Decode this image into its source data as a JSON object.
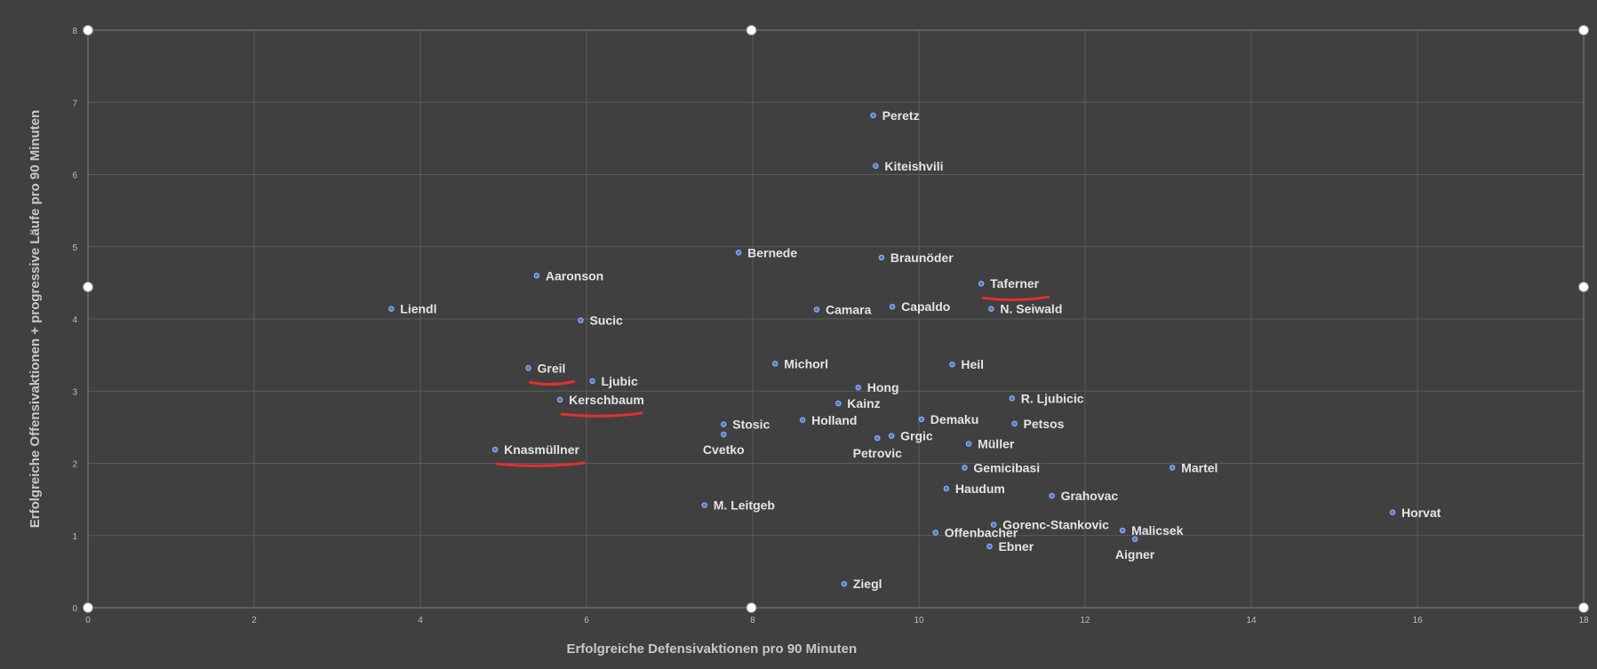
{
  "chart_data": {
    "type": "scatter",
    "title": "",
    "xlabel": "Erfolgreiche Defensivaktionen pro 90 Minuten",
    "ylabel": "Erfolgreiche Offensivaktionen + progressive Läufe pro 90 Minuten",
    "xlim": [
      0,
      18
    ],
    "ylim": [
      0,
      8
    ],
    "x_ticks": [
      0,
      2,
      4,
      6,
      8,
      10,
      12,
      14,
      16,
      18
    ],
    "y_ticks": [
      0,
      1,
      2,
      3,
      4,
      5,
      6,
      7,
      8
    ],
    "grid": true,
    "point_color": "#4a78d6",
    "label_color": "#e4e4e4",
    "highlight_color": "#e23030",
    "highlighted": [
      "Taferner",
      "Greil",
      "Kerschbaum",
      "Knasmüllner"
    ],
    "points": [
      {
        "name": "Peretz",
        "x": 9.45,
        "y": 6.82
      },
      {
        "name": "Kiteishvili",
        "x": 9.48,
        "y": 6.12
      },
      {
        "name": "Bernede",
        "x": 7.83,
        "y": 4.92
      },
      {
        "name": "Braunöder",
        "x": 9.55,
        "y": 4.85
      },
      {
        "name": "Aaronson",
        "x": 5.4,
        "y": 4.6
      },
      {
        "name": "Taferner",
        "x": 10.75,
        "y": 4.49
      },
      {
        "name": "Liendl",
        "x": 3.65,
        "y": 4.14
      },
      {
        "name": "Camara",
        "x": 8.77,
        "y": 4.13
      },
      {
        "name": "Capaldo",
        "x": 9.68,
        "y": 4.17
      },
      {
        "name": "N. Seiwald",
        "x": 10.87,
        "y": 4.14
      },
      {
        "name": "Sucic",
        "x": 5.93,
        "y": 3.98
      },
      {
        "name": "Michorl",
        "x": 8.27,
        "y": 3.38
      },
      {
        "name": "Heil",
        "x": 10.4,
        "y": 3.37
      },
      {
        "name": "Greil",
        "x": 5.3,
        "y": 3.32
      },
      {
        "name": "Ljubic",
        "x": 6.07,
        "y": 3.14
      },
      {
        "name": "Hong",
        "x": 9.27,
        "y": 3.05
      },
      {
        "name": "R. Ljubicic",
        "x": 11.12,
        "y": 2.9
      },
      {
        "name": "Kerschbaum",
        "x": 5.68,
        "y": 2.88
      },
      {
        "name": "Kainz",
        "x": 9.03,
        "y": 2.83
      },
      {
        "name": "Holland",
        "x": 8.6,
        "y": 2.6
      },
      {
        "name": "Demaku",
        "x": 10.03,
        "y": 2.61
      },
      {
        "name": "Stosic",
        "x": 7.65,
        "y": 2.54
      },
      {
        "name": "Petsos",
        "x": 11.15,
        "y": 2.55
      },
      {
        "name": "Cvetko",
        "x": 7.65,
        "y": 2.4,
        "label_pos": "below"
      },
      {
        "name": "Grgic",
        "x": 9.67,
        "y": 2.38
      },
      {
        "name": "Petrovic",
        "x": 9.5,
        "y": 2.35,
        "label_pos": "below"
      },
      {
        "name": "Müller",
        "x": 10.6,
        "y": 2.27
      },
      {
        "name": "Knasmüllner",
        "x": 4.9,
        "y": 2.19
      },
      {
        "name": "Gemicibasi",
        "x": 10.55,
        "y": 1.94
      },
      {
        "name": "Martel",
        "x": 13.05,
        "y": 1.94
      },
      {
        "name": "Haudum",
        "x": 10.33,
        "y": 1.65
      },
      {
        "name": "Grahovac",
        "x": 11.6,
        "y": 1.55
      },
      {
        "name": "M. Leitgeb",
        "x": 7.42,
        "y": 1.42
      },
      {
        "name": "Horvat",
        "x": 15.7,
        "y": 1.32
      },
      {
        "name": "Gorenc-Stankovic",
        "x": 10.9,
        "y": 1.15
      },
      {
        "name": "Malicsek",
        "x": 12.45,
        "y": 1.07
      },
      {
        "name": "Offenbacher",
        "x": 10.2,
        "y": 1.04
      },
      {
        "name": "Aigner",
        "x": 12.6,
        "y": 0.95,
        "label_pos": "below"
      },
      {
        "name": "Ebner",
        "x": 10.85,
        "y": 0.85
      },
      {
        "name": "Ziegl",
        "x": 9.1,
        "y": 0.33
      }
    ]
  }
}
